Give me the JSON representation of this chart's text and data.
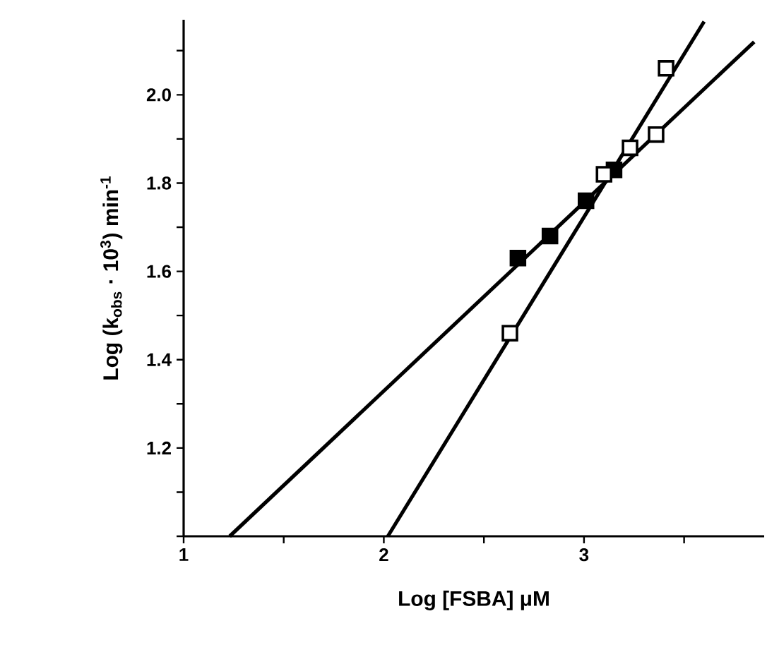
{
  "chart_data": {
    "type": "scatter",
    "xlabel": "Log [FSBA] μM",
    "ylabel": "Log (k$_{obs}$ · 10$^{3}$) min$^{-1}$",
    "xlim": [
      1,
      3.9
    ],
    "ylim": [
      1.0,
      2.17
    ],
    "xticks": [
      1,
      {
        "value": 1.5,
        "label": null
      },
      2,
      {
        "value": 2.5,
        "label": null
      },
      3,
      {
        "value": 3.5,
        "label": null
      }
    ],
    "yticks": [
      {
        "value": 1.0,
        "label": null
      },
      {
        "value": 1.1,
        "label": null
      },
      {
        "value": 1.2,
        "label": "1.2"
      },
      {
        "value": 1.3,
        "label": null
      },
      {
        "value": 1.4,
        "label": "1.4"
      },
      {
        "value": 1.5,
        "label": null
      },
      {
        "value": 1.6,
        "label": "1.6"
      },
      {
        "value": 1.7,
        "label": null
      },
      {
        "value": 1.8,
        "label": "1.8"
      },
      {
        "value": 1.9,
        "label": null
      },
      {
        "value": 2.0,
        "label": "2.0"
      },
      {
        "value": 2.1,
        "label": null
      }
    ],
    "grid": false,
    "series": [
      {
        "type": "line",
        "color": "#000000",
        "marker": "none",
        "x": [
          1.23,
          3.85
        ],
        "values": [
          1.0,
          2.12
        ]
      },
      {
        "type": "line",
        "color": "#000000",
        "marker": "none",
        "x": [
          2.02,
          3.6
        ],
        "values": [
          1.0,
          2.166
        ]
      },
      {
        "color": "#000000",
        "marker": "square",
        "x": [
          2.67,
          2.83,
          3.01,
          3.15
        ],
        "values": [
          1.63,
          1.68,
          1.76,
          1.83
        ]
      },
      {
        "color": "#ffffff",
        "marker": "square",
        "x": [
          2.63,
          3.1,
          3.23,
          3.36,
          3.41
        ],
        "values": [
          1.46,
          1.82,
          1.88,
          1.91,
          2.06
        ]
      }
    ]
  }
}
